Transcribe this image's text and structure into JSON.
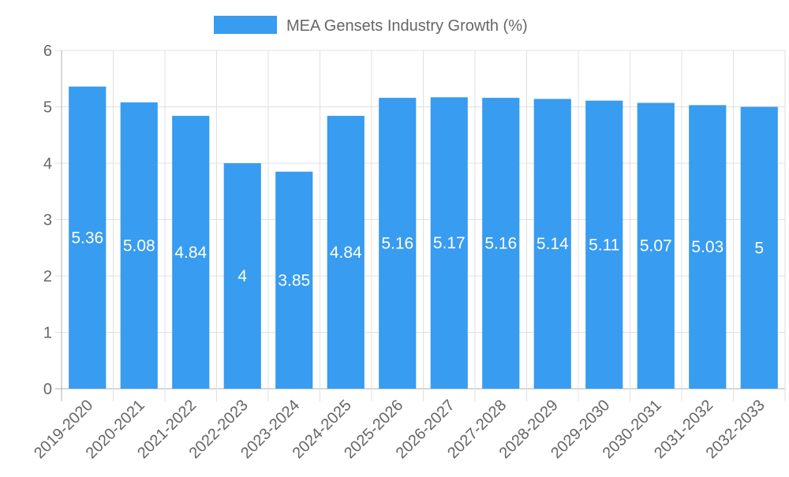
{
  "chart_data": {
    "type": "bar",
    "title": "",
    "legend": {
      "label": "MEA Gensets Industry Growth (%)",
      "placement": "top-center"
    },
    "xlabel": "",
    "ylabel": "",
    "ylim": [
      0,
      6
    ],
    "yticks": [
      "0",
      "1",
      "2",
      "3",
      "4",
      "5",
      "6"
    ],
    "grid": true,
    "categories": [
      "2019-2020",
      "2020-2021",
      "2021-2022",
      "2022-2023",
      "2023-2024",
      "2024-2025",
      "2025-2026",
      "2026-2027",
      "2027-2028",
      "2028-2029",
      "2029-2030",
      "2030-2031",
      "2031-2032",
      "2032-2033"
    ],
    "series": [
      {
        "name": "MEA Gensets Industry Growth (%)",
        "values": [
          5.36,
          5.08,
          4.84,
          4,
          3.85,
          4.84,
          5.16,
          5.17,
          5.16,
          5.14,
          5.11,
          5.07,
          5.03,
          5
        ],
        "labels": [
          "5.36",
          "5.08",
          "4.84",
          "4",
          "3.85",
          "4.84",
          "5.16",
          "5.17",
          "5.16",
          "5.14",
          "5.11",
          "5.07",
          "5.03",
          "5"
        ]
      }
    ],
    "colors": {
      "bar": "#389cf0",
      "grid": "#e0e0e0",
      "axis": "#b0b0b0",
      "tick_text": "#666666",
      "data_label": "#ffffff"
    }
  }
}
